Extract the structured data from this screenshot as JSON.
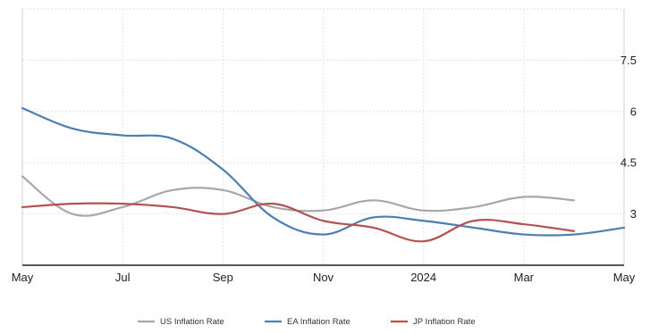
{
  "chart_data": {
    "type": "line",
    "title": "",
    "xlabel": "",
    "ylabel": "",
    "x": [
      "2023-05",
      "2023-06",
      "2023-07",
      "2023-08",
      "2023-09",
      "2023-10",
      "2023-11",
      "2023-12",
      "2024-01",
      "2024-02",
      "2024-03",
      "2024-04",
      "2024-05"
    ],
    "x_tick_labels": [
      "May",
      "Jul",
      "Sep",
      "Nov",
      "2024",
      "Mar",
      "May"
    ],
    "x_tick_positions": [
      "2023-05",
      "2023-07",
      "2023-09",
      "2023-11",
      "2024-01",
      "2024-03",
      "2024-05"
    ],
    "y_ticks": [
      3,
      4.5,
      6,
      7.5
    ],
    "y_tick_labels": [
      "3",
      "4.5",
      "6",
      "7.5"
    ],
    "ylim": [
      1.5,
      9.0
    ],
    "y_axis_position": "right",
    "grid": true,
    "legend_position": "bottom",
    "series": [
      {
        "name": "US Inflation Rate",
        "color": "#a8a8a8",
        "x": [
          "2023-05",
          "2023-06",
          "2023-07",
          "2023-08",
          "2023-09",
          "2023-10",
          "2023-11",
          "2023-12",
          "2024-01",
          "2024-02",
          "2024-03",
          "2024-04"
        ],
        "values": [
          4.1,
          3.0,
          3.2,
          3.7,
          3.7,
          3.2,
          3.1,
          3.4,
          3.1,
          3.2,
          3.5,
          3.4
        ]
      },
      {
        "name": "EA Inflation Rate",
        "color": "#4a7fb5",
        "x": [
          "2023-05",
          "2023-06",
          "2023-07",
          "2023-08",
          "2023-09",
          "2023-10",
          "2023-11",
          "2023-12",
          "2024-01",
          "2024-02",
          "2024-03",
          "2024-04",
          "2024-05"
        ],
        "values": [
          6.1,
          5.5,
          5.3,
          5.2,
          4.3,
          2.9,
          2.4,
          2.9,
          2.8,
          2.6,
          2.4,
          2.4,
          2.6
        ]
      },
      {
        "name": "JP Inflation Rate",
        "color": "#b5524f",
        "x": [
          "2023-05",
          "2023-06",
          "2023-07",
          "2023-08",
          "2023-09",
          "2023-10",
          "2023-11",
          "2023-12",
          "2024-01",
          "2024-02",
          "2024-03",
          "2024-04"
        ],
        "values": [
          3.2,
          3.3,
          3.3,
          3.2,
          3.0,
          3.3,
          2.8,
          2.6,
          2.2,
          2.8,
          2.7,
          2.5
        ]
      }
    ]
  }
}
